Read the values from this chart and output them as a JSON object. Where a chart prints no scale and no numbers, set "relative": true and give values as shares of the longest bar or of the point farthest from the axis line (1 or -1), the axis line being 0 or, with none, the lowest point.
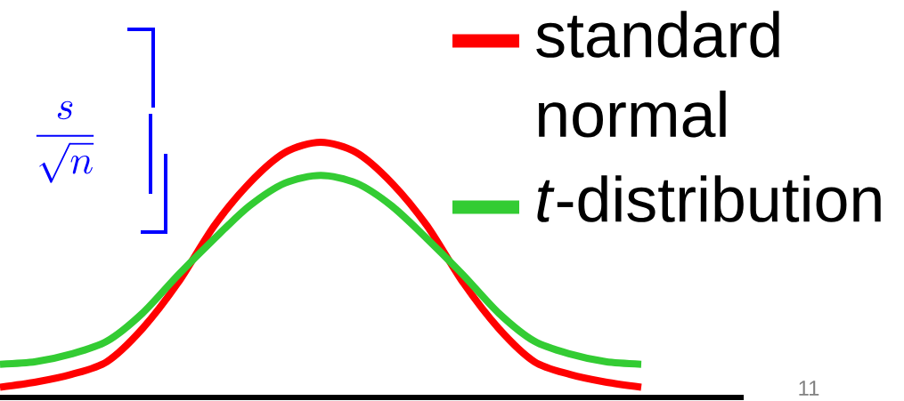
{
  "chart_data": {
    "type": "line",
    "relative": true,
    "legend": "top right",
    "categories": [
      null,
      null,
      null,
      null,
      null,
      null,
      null,
      null,
      null,
      null,
      null,
      null,
      null,
      null,
      null,
      null,
      null,
      null,
      null
    ],
    "series": [
      {
        "name": "standard normal",
        "color": "#ff0000",
        "values": [
          0.04,
          0.06,
          0.09,
          0.14,
          0.27,
          0.45,
          0.67,
          0.84,
          0.96,
          1,
          0.96,
          0.84,
          0.67,
          0.45,
          0.27,
          0.14,
          0.09,
          0.06,
          0.04
        ]
      },
      {
        "name": "*t*-distribution",
        "color": "#33cc33",
        "values": [
          0.13,
          0.14,
          0.17,
          0.22,
          0.33,
          0.48,
          0.62,
          0.75,
          0.84,
          0.87,
          0.84,
          0.75,
          0.62,
          0.48,
          0.33,
          0.22,
          0.17,
          0.14,
          0.13
        ]
      }
    ],
    "annotations": [
      "\\frac{s}{\\sqrt{n}}",
      "11"
    ]
  }
}
